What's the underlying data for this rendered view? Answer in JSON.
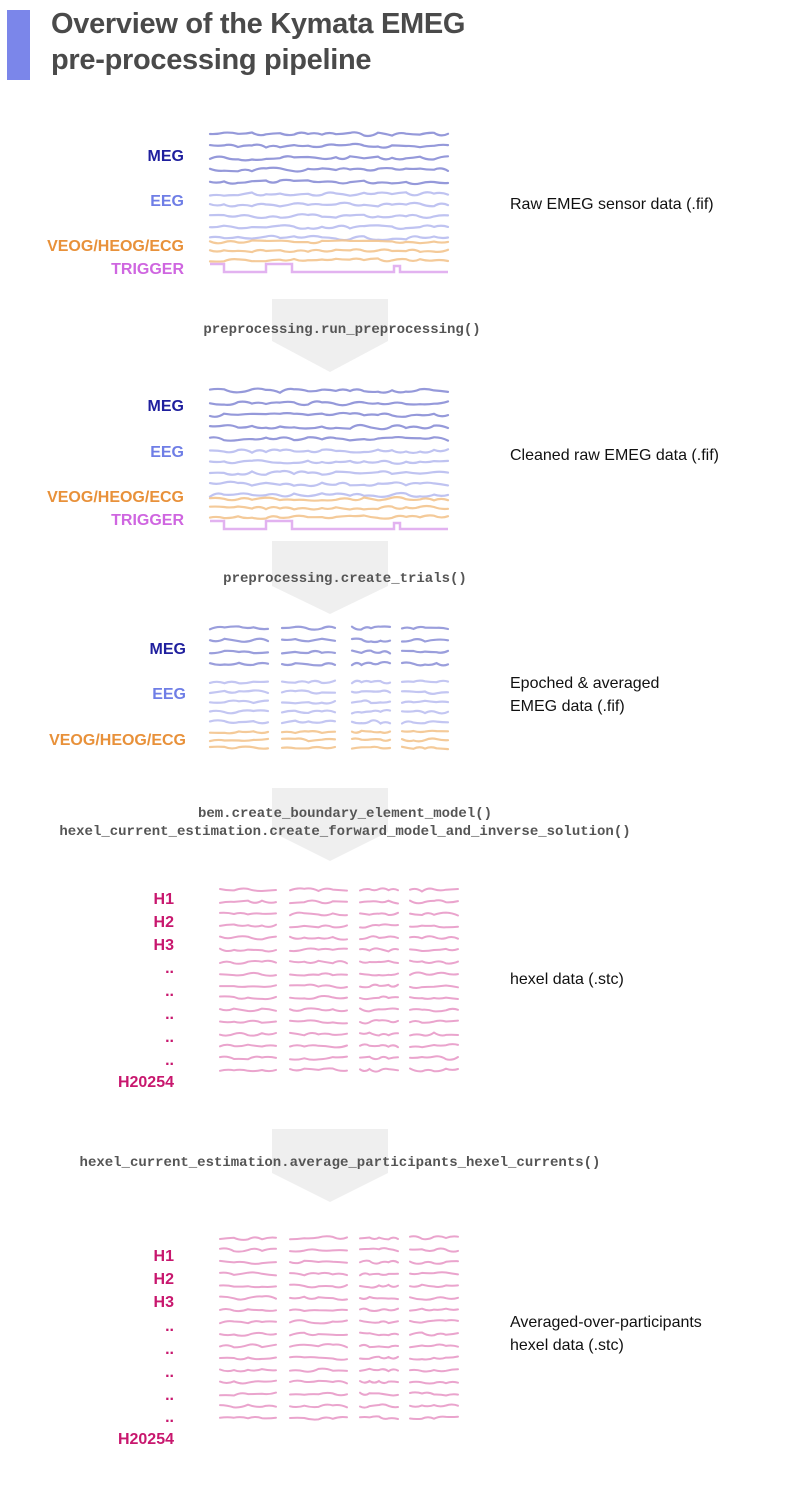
{
  "title": {
    "line1": "Overview of the Kymata EMEG",
    "line2": "pre-processing pipeline"
  },
  "colors": {
    "accent_bar": "#7b86ea",
    "meg": "#1f1f9e",
    "eeg": "#6f7ee6",
    "veog": "#e8913a",
    "trigger": "#cf66e0",
    "hexel": "#c8176e",
    "arrow": "#efefef",
    "meg_trace": "#8f93d8",
    "eeg_trace": "#b8bcf0",
    "veog_trace": "#f3c48e",
    "trigger_trace": "#e2b2f0",
    "hexel_trace": "#e89ac8"
  },
  "stages": [
    {
      "labels": {
        "meg": "MEG",
        "eeg": "EEG",
        "veog": "VEOG/HEOG/ECG",
        "trigger": "TRIGGER"
      },
      "description": [
        "Raw EMEG sensor data (.fif)"
      ]
    },
    {
      "labels": {
        "meg": "MEG",
        "eeg": "EEG",
        "veog": "VEOG/HEOG/ECG",
        "trigger": "TRIGGER"
      },
      "description": [
        "Cleaned raw EMEG data (.fif)"
      ]
    },
    {
      "labels": {
        "meg": "MEG",
        "eeg": "EEG",
        "veog": "VEOG/HEOG/ECG"
      },
      "description": [
        "Epoched & averaged",
        "EMEG data (.fif)"
      ]
    },
    {
      "labels": {
        "hexels": [
          "H1",
          "H2",
          "H3",
          "..",
          "..",
          "..",
          "..",
          "..",
          "H20254"
        ]
      },
      "description": [
        "hexel data (.stc)"
      ]
    },
    {
      "labels": {
        "hexels": [
          "H1",
          "H2",
          "H3",
          "..",
          "..",
          "..",
          "..",
          "..",
          "H20254"
        ]
      },
      "description": [
        "Averaged-over-participants",
        "hexel data (.stc)"
      ]
    }
  ],
  "functions": [
    {
      "lines": [
        "preprocessing.run_preprocessing()"
      ]
    },
    {
      "lines": [
        "preprocessing.create_trials()"
      ]
    },
    {
      "lines": [
        "bem.create_boundary_element_model()",
        "hexel_current_estimation.create_forward_model_and_inverse_solution()"
      ]
    },
    {
      "lines": [
        "hexel_current_estimation.average_participants_hexel_currents()"
      ]
    }
  ]
}
